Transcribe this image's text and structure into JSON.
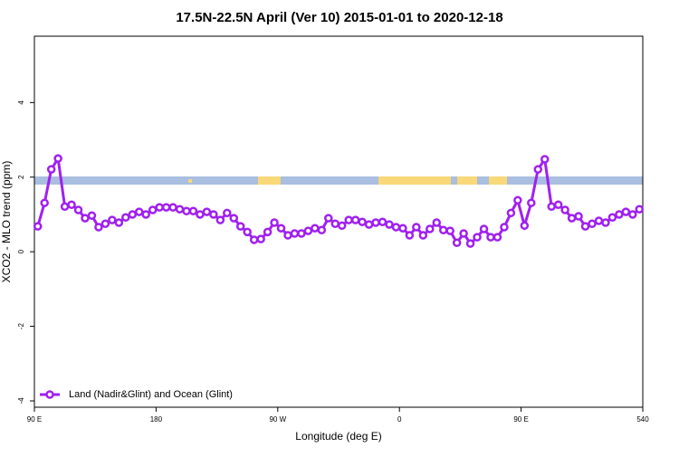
{
  "chart_data": {
    "type": "line",
    "title": "17.5N-22.5N April (Ver 10)   2015-01-01 to 2020-12-18",
    "x_label": "Longitude (deg E)",
    "y_label": "XCO2 - MLO trend (ppm)",
    "x": [
      92.5,
      97.5,
      102.5,
      107.5,
      112.5,
      117.5,
      122.5,
      127.5,
      132.5,
      137.5,
      142.5,
      147.5,
      152.5,
      157.5,
      162.5,
      167.5,
      172.5,
      177.5,
      182.5,
      187.5,
      192.5,
      197.5,
      202.5,
      207.5,
      212.5,
      217.5,
      222.5,
      227.5,
      232.5,
      237.5,
      242.5,
      247.5,
      252.5,
      257.5,
      262.5,
      267.5,
      272.5,
      277.5,
      282.5,
      287.5,
      292.5,
      297.5,
      302.5,
      307.5,
      312.5,
      317.5,
      322.5,
      327.5,
      332.5,
      337.5,
      342.5,
      347.5,
      352.5,
      357.5,
      362.5,
      367.5,
      372.5,
      377.5,
      382.5,
      387.5,
      392.5,
      397.5,
      402.5,
      407.5,
      412.5,
      417.5,
      422.5,
      427.5,
      432.5,
      437.5,
      442.5,
      447.5,
      452.5,
      457.5,
      462.5,
      467.5,
      472.5,
      477.5,
      482.5,
      487.5,
      492.5,
      497.5,
      502.5,
      507.5,
      512.5,
      517.5,
      522.5,
      527.5,
      532.5,
      537.5
    ],
    "series": [
      {
        "name": "Land (Nadir&Glint) and Ocean (Glint)",
        "color": "#a020f0",
        "values": [
          0.68,
          1.31,
          2.21,
          2.5,
          1.21,
          1.26,
          1.12,
          0.9,
          0.97,
          0.66,
          0.75,
          0.85,
          0.78,
          0.92,
          1.0,
          1.07,
          1.0,
          1.12,
          1.19,
          1.19,
          1.19,
          1.14,
          1.09,
          1.09,
          1.0,
          1.07,
          1.0,
          0.85,
          1.04,
          0.9,
          0.68,
          0.53,
          0.32,
          0.34,
          0.53,
          0.78,
          0.63,
          0.44,
          0.49,
          0.49,
          0.56,
          0.63,
          0.58,
          0.9,
          0.75,
          0.7,
          0.85,
          0.85,
          0.8,
          0.73,
          0.78,
          0.8,
          0.73,
          0.66,
          0.63,
          0.44,
          0.66,
          0.44,
          0.61,
          0.78,
          0.58,
          0.56,
          0.24,
          0.49,
          0.22,
          0.39,
          0.61,
          0.39,
          0.39,
          0.66,
          1.04,
          1.38,
          0.7,
          1.31,
          2.21,
          2.48,
          1.21,
          1.26,
          1.12,
          0.9,
          0.95,
          0.68,
          0.75,
          0.83,
          0.78,
          0.92,
          1.0,
          1.07,
          1.0,
          1.14
        ]
      }
    ],
    "xlim": [
      90,
      540
    ],
    "xticks": [
      {
        "value": 90,
        "label": "90 E"
      },
      180,
      {
        "value": 270,
        "label": "90 W"
      },
      {
        "value": 360,
        "label": "0"
      },
      {
        "value": 450,
        "label": "90 E"
      },
      540
    ],
    "ylim": [
      -4.17,
      5.78
    ],
    "yticks": [
      -4,
      -2,
      0,
      2,
      4
    ],
    "legend": "bottom-left"
  }
}
